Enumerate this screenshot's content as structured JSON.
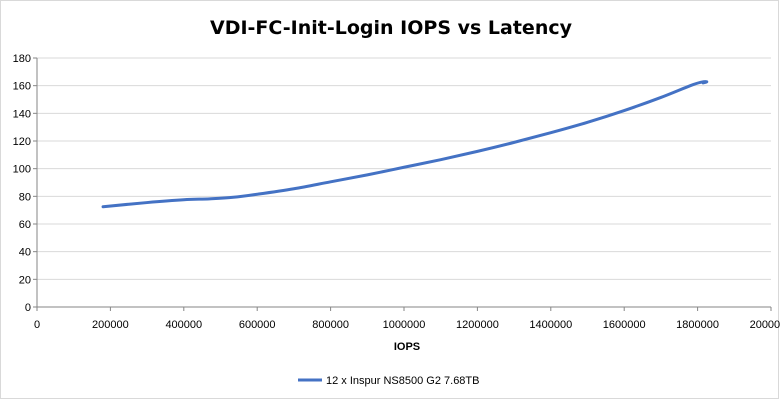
{
  "chart_data": {
    "type": "line",
    "title": "VDI-FC-Init-Login IOPS vs Latency",
    "xlabel": "IOPS",
    "ylabel": "",
    "xlim": [
      0,
      2000000
    ],
    "ylim": [
      0,
      180
    ],
    "xticks": [
      0,
      200000,
      400000,
      600000,
      800000,
      1000000,
      1200000,
      1400000,
      1600000,
      1800000,
      2000000
    ],
    "yticks": [
      0,
      20,
      40,
      60,
      80,
      100,
      120,
      140,
      160,
      180
    ],
    "grid": "horizontal",
    "legend_position": "bottom",
    "series": [
      {
        "name": "12 x Inspur NS8500 G2 7.68TB",
        "color": "#4472c4",
        "points": [
          [
            180000,
            72.5
          ],
          [
            300000,
            75.5
          ],
          [
            400000,
            77.5
          ],
          [
            470000,
            78.2
          ],
          [
            535000,
            79.3
          ],
          [
            600000,
            81.5
          ],
          [
            700000,
            85.5
          ],
          [
            800000,
            90.5
          ],
          [
            900000,
            95.5
          ],
          [
            1000000,
            101
          ],
          [
            1100000,
            106.5
          ],
          [
            1200000,
            112.5
          ],
          [
            1300000,
            119
          ],
          [
            1400000,
            126
          ],
          [
            1500000,
            133.5
          ],
          [
            1600000,
            142
          ],
          [
            1700000,
            151.5
          ],
          [
            1780000,
            160
          ],
          [
            1810000,
            162.5
          ],
          [
            1825000,
            162.8
          ],
          [
            1815000,
            162
          ]
        ]
      }
    ]
  }
}
